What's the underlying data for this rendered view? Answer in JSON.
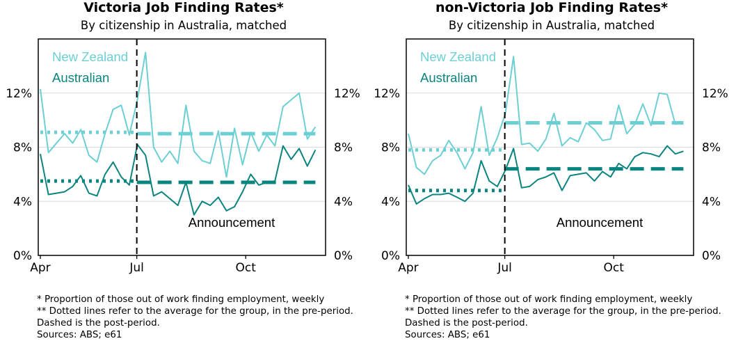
{
  "colors": {
    "new_zealand": "#6ccfd4",
    "australian": "#0a847f",
    "grid": "#d9d9d9",
    "frame": "#000000"
  },
  "chart_data": [
    {
      "type": "line",
      "title": "Victoria Job Finding Rates*",
      "subtitle": "By citizenship in Australia, matched",
      "ylim": [
        0,
        16
      ],
      "yticks": [
        0,
        4,
        8,
        12
      ],
      "ytick_labels": [
        "0%",
        "4%",
        "8%",
        "12%"
      ],
      "xlim": [
        -0.2,
        27.5
      ],
      "xticks": [
        {
          "x": 0,
          "label": "Apr"
        },
        {
          "x": 9.3,
          "label": "Jul"
        },
        {
          "x": 19.8,
          "label": "Oct"
        }
      ],
      "grid": true,
      "announcement": {
        "x": 9.3,
        "label": "Announcement"
      },
      "series": [
        {
          "name": "New Zealand",
          "values": [
            12.3,
            7.6,
            8.3,
            9.0,
            8.3,
            9.3,
            7.4,
            6.9,
            9.0,
            10.8,
            11.1,
            8.9,
            11.5,
            15.0,
            8.0,
            6.9,
            7.7,
            6.8,
            11.1,
            7.7,
            7.0,
            6.8,
            9.2,
            5.8,
            9.4,
            6.7,
            9.1,
            7.7,
            8.9,
            8.1,
            11.0,
            11.5,
            12.0,
            8.6,
            9.5
          ],
          "x_start": 0,
          "x_step": 0.78,
          "pre_avg": 9.1,
          "post_avg": 9.0
        },
        {
          "name": "Australian",
          "values": [
            7.5,
            4.5,
            4.6,
            4.7,
            5.1,
            5.9,
            4.6,
            4.4,
            6.0,
            6.9,
            5.8,
            5.2,
            8.2,
            7.4,
            4.4,
            4.7,
            4.2,
            3.7,
            5.4,
            3.0,
            4.0,
            3.7,
            4.3,
            3.3,
            3.6,
            4.7,
            6.0,
            5.2,
            5.4,
            5.5,
            8.1,
            7.1,
            7.9,
            6.6,
            7.8
          ],
          "x_start": 0,
          "x_step": 0.78,
          "pre_avg": 5.5,
          "post_avg": 5.4
        }
      ]
    },
    {
      "type": "line",
      "title": "non-Victoria Job Finding Rates*",
      "subtitle": "By citizenship in Australia, matched",
      "ylim": [
        0,
        16
      ],
      "yticks": [
        0,
        4,
        8,
        12
      ],
      "ytick_labels": [
        "0%",
        "4%",
        "8%",
        "12%"
      ],
      "xlim": [
        -0.2,
        27.5
      ],
      "xticks": [
        {
          "x": 0,
          "label": "Apr"
        },
        {
          "x": 9.3,
          "label": "Jul"
        },
        {
          "x": 19.8,
          "label": "Oct"
        }
      ],
      "grid": true,
      "announcement": {
        "x": 9.3,
        "label": "Announcement"
      },
      "series": [
        {
          "name": "New Zealand",
          "values": [
            9.0,
            6.5,
            6.0,
            7.0,
            7.4,
            8.5,
            7.6,
            6.4,
            7.6,
            11.0,
            7.4,
            8.7,
            10.5,
            14.7,
            8.2,
            8.3,
            7.7,
            8.6,
            10.5,
            8.1,
            8.7,
            8.4,
            9.8,
            9.3,
            8.5,
            8.6,
            11.1,
            9.0,
            9.7,
            11.2,
            9.6,
            12.0,
            11.9,
            9.7,
            9.8
          ],
          "x_start": 0,
          "x_step": 0.78,
          "pre_avg": 7.8,
          "post_avg": 9.8
        },
        {
          "name": "Australian",
          "values": [
            5.2,
            3.8,
            4.2,
            4.5,
            4.5,
            4.6,
            4.3,
            4.0,
            4.6,
            7.0,
            5.5,
            5.1,
            6.3,
            7.9,
            5.0,
            5.1,
            5.6,
            5.8,
            6.1,
            4.8,
            5.9,
            6.0,
            6.1,
            5.5,
            6.2,
            5.8,
            6.8,
            6.4,
            7.3,
            7.6,
            7.5,
            7.3,
            8.1,
            7.5,
            7.7
          ],
          "x_start": 0,
          "x_step": 0.78,
          "pre_avg": 4.8,
          "post_avg": 6.4
        }
      ]
    }
  ],
  "notes": [
    "* Proportion of those out of work finding employment, weekly",
    "** Dotted lines refer to the average for the group, in the pre-period.",
    "Dashed is the post-period.",
    "Sources: ABS; e61"
  ]
}
